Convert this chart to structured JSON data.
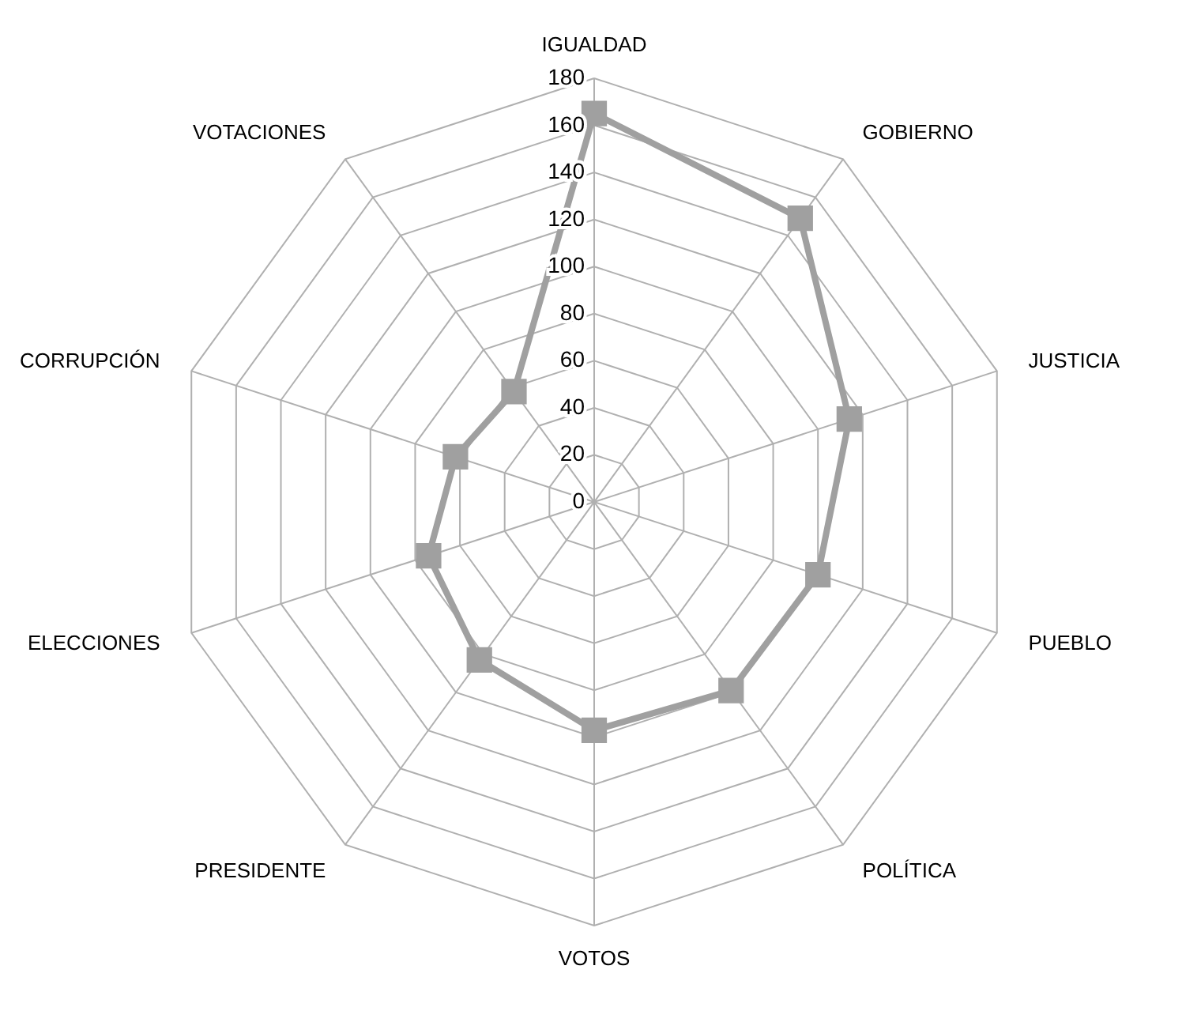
{
  "chart_data": {
    "type": "radar",
    "categories": [
      "IGUALDAD",
      "GOBIERNO",
      "JUSTICIA",
      "PUEBLO",
      "POLÍTICA",
      "VOTOS",
      "PRESIDENTE",
      "ELECCIONES",
      "CORRUPCIÓN",
      "VOTACIONES"
    ],
    "series": [
      {
        "color": "#a0a0a0",
        "values": [
          165,
          149,
          114,
          100,
          99,
          97,
          83,
          74,
          62,
          58
        ]
      }
    ],
    "ylim": [
      0,
      180
    ],
    "yticks": [
      0,
      20,
      40,
      60,
      80,
      100,
      120,
      140,
      160,
      180
    ],
    "grid": true,
    "marker": "square",
    "line_style": "solid"
  }
}
